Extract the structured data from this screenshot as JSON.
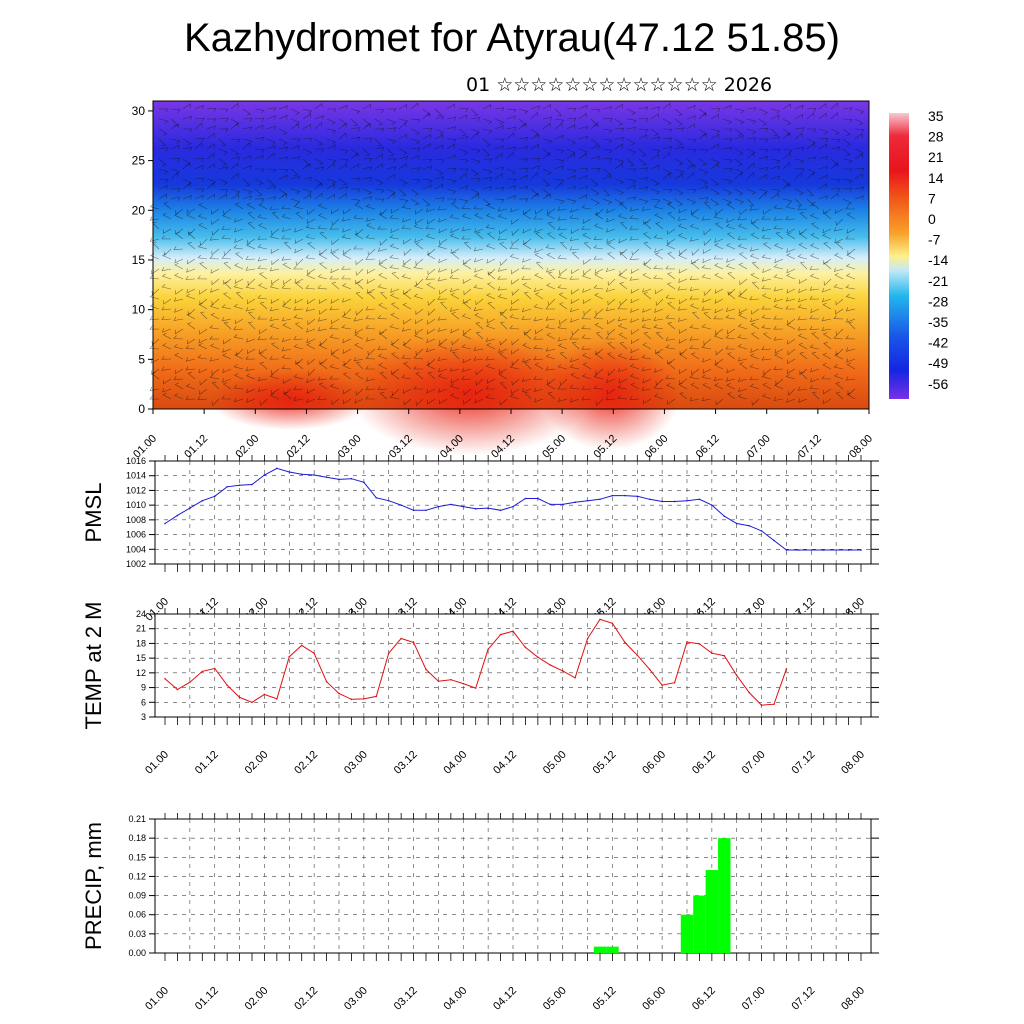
{
  "title": "Kazhydromet for Atyrau(47.12 51.85)",
  "subtitle": "01 ☆☆☆☆☆☆☆☆☆☆☆☆☆ 2026",
  "chart_data": [
    {
      "type": "heatmap",
      "name": "cross-section",
      "ylim": [
        0,
        31
      ],
      "yticks": [
        0,
        5,
        10,
        15,
        20,
        25,
        30
      ],
      "xtick_labels": [
        "01.00",
        "01.12",
        "02.00",
        "02.12",
        "03.00",
        "03.12",
        "04.00",
        "04.12",
        "05.00",
        "05.12",
        "06.00",
        "06.12",
        "07.00",
        "07.12",
        "08.00"
      ],
      "colorbar_labels": [
        "35",
        "28",
        "21",
        "14",
        "7",
        "0",
        "-7",
        "-14",
        "-21",
        "-28",
        "-35",
        "-42",
        "-49",
        "-56"
      ],
      "colors": [
        "#f4b8c4",
        "#e8121e",
        "#f25818",
        "#f8921e",
        "#ffc62e",
        "#fff68e",
        "#bfe6f6",
        "#1ab2ea",
        "#1276e8",
        "#1330e4",
        "#6a2ae6"
      ],
      "note": "temperature shading with wind barbs"
    },
    {
      "type": "line",
      "name": "PMSL",
      "ylabel": "PMSL",
      "ylim": [
        1002,
        1016
      ],
      "yticks": [
        1002,
        1004,
        1006,
        1008,
        1010,
        1012,
        1014,
        1016
      ],
      "color": "#1b1bd4",
      "xtick_labels": [
        "01.00",
        "01.12",
        "02.00",
        "02.12",
        "03.00",
        "03.12",
        "04.00",
        "04.12",
        "05.00",
        "05.12",
        "06.00",
        "06.12",
        "07.00",
        "07.12",
        "08.00"
      ],
      "x": [
        0,
        3,
        6,
        9,
        12,
        15,
        18,
        21,
        24,
        27,
        30,
        33,
        36,
        39,
        42,
        45,
        48,
        51,
        54,
        57,
        60,
        63,
        66,
        69,
        72,
        75,
        78,
        81,
        84,
        87,
        90,
        93,
        96,
        99,
        102,
        105,
        108,
        111,
        114,
        117,
        120,
        123,
        126,
        129,
        132,
        135,
        138,
        141,
        144,
        147,
        150,
        153,
        156,
        159,
        162,
        165,
        168
      ],
      "values": [
        1007.5,
        1008.6,
        1009.6,
        1010.6,
        1011.2,
        1012.5,
        1012.7,
        1012.8,
        1014.1,
        1015.0,
        1014.5,
        1014.2,
        1014.1,
        1013.8,
        1013.5,
        1013.6,
        1013.1,
        1011.0,
        1010.6,
        1010.0,
        1009.3,
        1009.3,
        1009.8,
        1010.1,
        1009.8,
        1009.5,
        1009.6,
        1009.3,
        1009.8,
        1010.9,
        1010.9,
        1010.1,
        1010.1,
        1010.4,
        1010.6,
        1010.8,
        1011.3,
        1011.3,
        1011.2,
        1010.8,
        1010.5,
        1010.5,
        1010.6,
        1010.8,
        1010.0,
        1008.5,
        1007.5,
        1007.2,
        1006.5,
        1005.2,
        1003.9,
        1003.9,
        1003.9,
        1003.9,
        1003.9,
        1003.9,
        1003.9
      ]
    },
    {
      "type": "line",
      "name": "TEMP at 2 M",
      "ylabel": "TEMP at 2 M",
      "ylim": [
        3,
        24
      ],
      "yticks": [
        3,
        6,
        9,
        12,
        15,
        18,
        21,
        24
      ],
      "color": "#e01010",
      "xtick_labels": [
        "01.00",
        "01.12",
        "02.00",
        "02.12",
        "03.00",
        "03.12",
        "04.00",
        "04.12",
        "05.00",
        "05.12",
        "06.00",
        "06.12",
        "07.00",
        "07.12",
        "08.00"
      ],
      "x": [
        0,
        3,
        6,
        9,
        12,
        15,
        18,
        21,
        24,
        27,
        30,
        33,
        36,
        39,
        42,
        45,
        48,
        51,
        54,
        57,
        60,
        63,
        66,
        69,
        72,
        75,
        78,
        81,
        84,
        87,
        90,
        93,
        96,
        99,
        102,
        105,
        108,
        111,
        114,
        117,
        120,
        123,
        126,
        129,
        132,
        135,
        138,
        141,
        144,
        147,
        150
      ],
      "values": [
        10.8,
        8.6,
        10.1,
        12.3,
        12.9,
        9.5,
        7.0,
        6.0,
        7.6,
        6.7,
        15.3,
        17.6,
        16.0,
        10.2,
        7.8,
        6.6,
        6.7,
        7.2,
        16.0,
        19.0,
        18.2,
        12.7,
        10.3,
        10.6,
        9.8,
        8.9,
        16.8,
        19.8,
        20.5,
        17.2,
        15.2,
        13.6,
        12.4,
        11.0,
        19.0,
        22.9,
        22.1,
        18.2,
        15.6,
        12.7,
        9.5,
        10.0,
        18.3,
        17.9,
        16.0,
        15.5,
        11.5,
        8.0,
        5.4,
        5.6,
        12.8
      ]
    },
    {
      "type": "bar",
      "name": "PRECIP, mm",
      "ylabel": "PRECIP, mm",
      "ylim": [
        0,
        0.21
      ],
      "yticks": [
        0.0,
        0.03,
        0.06,
        0.09,
        0.12,
        0.15,
        0.18,
        0.21
      ],
      "color": "#00ff00",
      "xtick_labels": [
        "01.00",
        "01.12",
        "02.00",
        "02.12",
        "03.00",
        "03.12",
        "04.00",
        "04.12",
        "05.00",
        "05.12",
        "06.00",
        "06.12",
        "07.00",
        "07.12",
        "08.00"
      ],
      "bars": [
        {
          "x": 105,
          "value": 0.01
        },
        {
          "x": 108,
          "value": 0.01
        },
        {
          "x": 126,
          "value": 0.06
        },
        {
          "x": 129,
          "value": 0.09
        },
        {
          "x": 132,
          "value": 0.13
        },
        {
          "x": 135,
          "value": 0.18
        }
      ]
    }
  ]
}
